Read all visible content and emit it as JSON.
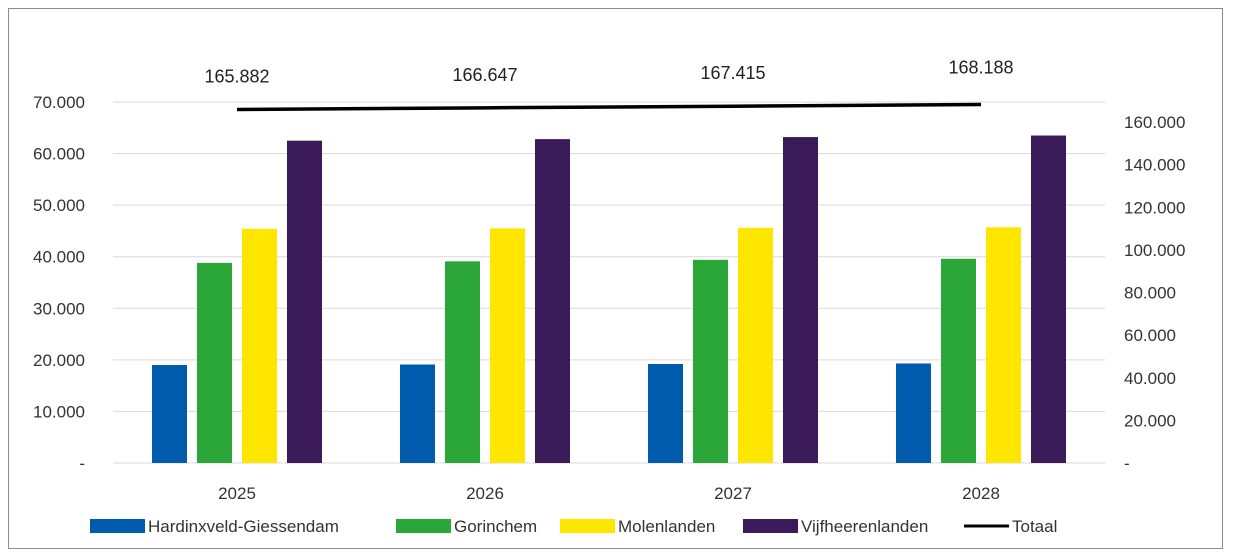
{
  "chart_data": {
    "type": "bar",
    "categories": [
      "2025",
      "2026",
      "2027",
      "2028"
    ],
    "series": [
      {
        "name": "Hardinxveld-Giessendam",
        "axis": "left",
        "color": "#005bac",
        "values": [
          19000,
          19100,
          19200,
          19300
        ]
      },
      {
        "name": "Gorinchem",
        "axis": "left",
        "color": "#2aa738",
        "values": [
          38800,
          39100,
          39400,
          39600
        ]
      },
      {
        "name": "Molenlanden",
        "axis": "left",
        "color": "#ffe600",
        "values": [
          45400,
          45500,
          45600,
          45700
        ]
      },
      {
        "name": "Vijfheerenlanden",
        "axis": "left",
        "color": "#3a1a59",
        "values": [
          62500,
          62800,
          63200,
          63500
        ]
      },
      {
        "name": "Totaal",
        "axis": "right",
        "type": "line",
        "color": "#000000",
        "values": [
          165882,
          166647,
          167415,
          168188
        ]
      }
    ],
    "data_labels": [
      "165.882",
      "166.647",
      "167.415",
      "168.188"
    ],
    "left_axis": {
      "ylim": [
        0,
        70000
      ],
      "ticks": [
        "-",
        "10.000",
        "20.000",
        "30.000",
        "40.000",
        "50.000",
        "60.000",
        "70.000"
      ]
    },
    "right_axis": {
      "ylim": [
        0,
        160000
      ],
      "ticks": [
        "-",
        "20.000",
        "40.000",
        "60.000",
        "80.000",
        "100.000",
        "120.000",
        "140.000",
        "160.000"
      ]
    },
    "grid": true,
    "legend_position": "bottom"
  }
}
